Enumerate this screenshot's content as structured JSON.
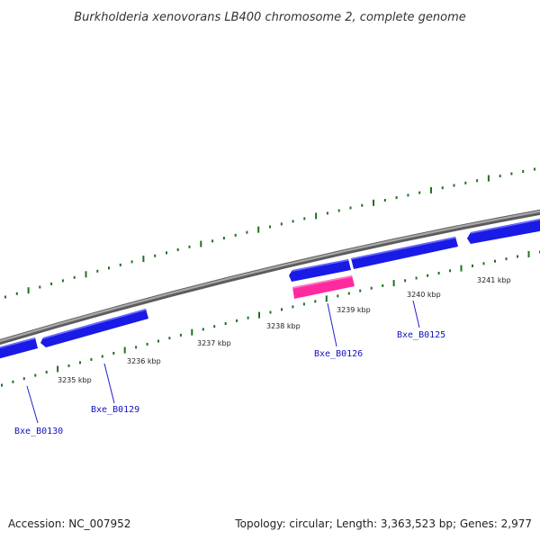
{
  "title": "Burkholderia xenovorans LB400 chromosome 2, complete genome",
  "footer": {
    "accession": "Accession: NC_007952",
    "summary": "Topology: circular; Length: 3,363,523 bp; Genes: 2,977"
  },
  "colors": {
    "backbone": "#8a8a8a",
    "gene": "#1a1ae6",
    "gene_highlight": "#ff2a9f",
    "tick": "#207020",
    "gene_label": "#1010c0",
    "label_leader": "#2222cc"
  },
  "scale_labels": [
    {
      "text": "3235 kbp",
      "kbp": 3235
    },
    {
      "text": "3236 kbp",
      "kbp": 3236
    },
    {
      "text": "3237 kbp",
      "kbp": 3237
    },
    {
      "text": "3238 kbp",
      "kbp": 3238
    },
    {
      "text": "3239 kbp",
      "kbp": 3239
    },
    {
      "text": "3240 kbp",
      "kbp": 3240
    },
    {
      "text": "3241 kbp",
      "kbp": 3241
    }
  ],
  "genes": [
    {
      "name": "Bxe_B0130"
    },
    {
      "name": "Bxe_B0129"
    },
    {
      "name": "Bxe_B0126"
    },
    {
      "name": "Bxe_B0125"
    }
  ]
}
